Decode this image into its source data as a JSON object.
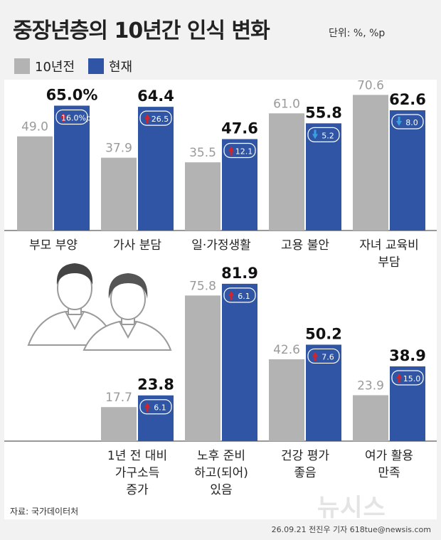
{
  "title": "중장년층의 10년간 인식 변화",
  "unit": "단위: %, %p",
  "legend": {
    "before": "10년전",
    "after": "현재"
  },
  "colors": {
    "before": "#b3b3b3",
    "after": "#2f55a4",
    "up": "#d6232a",
    "down": "#3b9ee0",
    "text_value": "#111111",
    "text_before": "#9a9a9a"
  },
  "chart_data": [
    {
      "type": "bar",
      "categories": [
        "부모 부양",
        "가사 분담",
        "일·가정생활",
        "고용 불안",
        "자녀 교육비\n부담"
      ],
      "series": [
        {
          "name": "10년전",
          "values": [
            49.0,
            37.9,
            35.5,
            61.0,
            70.6
          ]
        },
        {
          "name": "현재",
          "values": [
            65.0,
            64.4,
            47.6,
            55.8,
            62.6
          ]
        }
      ],
      "value_labels_before": [
        "49.0",
        "37.9",
        "35.5",
        "61.0",
        "70.6"
      ],
      "value_labels_after": [
        "65.0%",
        "64.4",
        "47.6",
        "55.8",
        "62.6"
      ],
      "change_labels": [
        "16.0%p",
        "26.5",
        "12.1",
        "5.2",
        "8.0"
      ],
      "change_direction": [
        "up",
        "up",
        "up",
        "down",
        "down"
      ]
    },
    {
      "type": "bar",
      "categories": [
        "1년 전 대비\n가구소득\n증가",
        "노후 준비\n하고(되어)\n있음",
        "건강 평가\n좋음",
        "여가 활용\n만족"
      ],
      "series": [
        {
          "name": "10년전",
          "values": [
            17.7,
            75.8,
            42.6,
            23.9
          ]
        },
        {
          "name": "현재",
          "values": [
            23.8,
            81.9,
            50.2,
            38.9
          ]
        }
      ],
      "value_labels_before": [
        "17.7",
        "75.8",
        "42.6",
        "23.9"
      ],
      "value_labels_after": [
        "23.8",
        "81.9",
        "50.2",
        "38.9"
      ],
      "change_labels": [
        "6.1",
        "6.1",
        "7.6",
        "15.0"
      ],
      "change_direction": [
        "up",
        "up",
        "up",
        "up"
      ]
    }
  ],
  "source": "자료: 국가데이터처",
  "credit": "26.09.21 전진우 기자 618tue@newsis.com",
  "watermark": "뉴시스"
}
